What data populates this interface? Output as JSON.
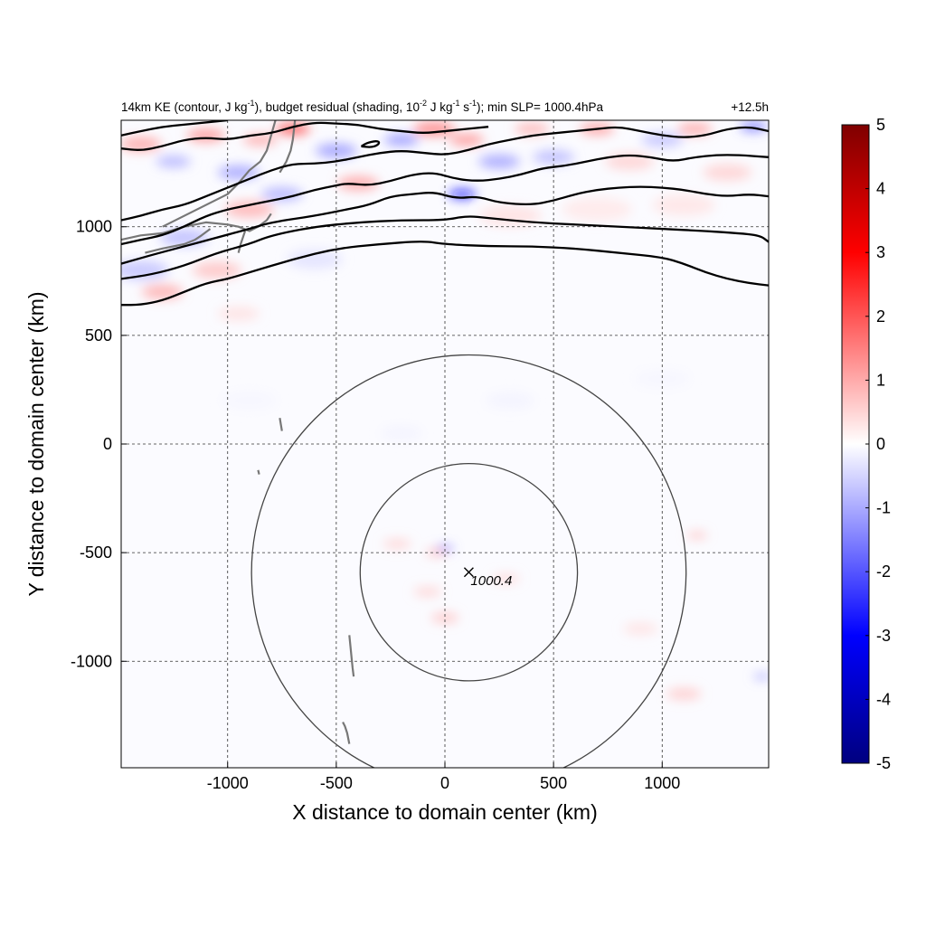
{
  "chart_data": {
    "type": "heatmap",
    "title": {
      "p1": "14km KE (contour, J kg",
      "p1_sup": "-1",
      "p2": "), budget residual (shading, 10",
      "p2_sup": "-2",
      "p3": " J kg",
      "p3_sup": "-1",
      "p4": " s",
      "p4_sup": "-1",
      "p5": "); min SLP= 1000.4hPa"
    },
    "time_label": "+12.5h",
    "xlabel": "X distance to domain center (km)",
    "ylabel": "Y distance to domain center (km)",
    "xlim": [
      -1490,
      1490
    ],
    "ylim": [
      -1490,
      1490
    ],
    "xticks": [
      "-1000",
      "-500",
      "0",
      "500",
      "1000"
    ],
    "xtick_values": [
      -1000,
      -500,
      0,
      500,
      1000
    ],
    "yticks": [
      "1000",
      "500",
      "0",
      "-500",
      "-1000"
    ],
    "ytick_values": [
      1000,
      500,
      0,
      -500,
      -1000
    ],
    "grid": "dashed",
    "colorbar": {
      "range": [
        -5,
        5
      ],
      "ticks": [
        "5",
        "4",
        "3",
        "2",
        "1",
        "0",
        "-1",
        "-2",
        "-3",
        "-4",
        "-5"
      ],
      "tick_values": [
        5,
        4,
        3,
        2,
        1,
        0,
        -1,
        -2,
        -3,
        -4,
        -5
      ],
      "colors": [
        "#00007f",
        "#0000ff",
        "#ffffff",
        "#ff0000",
        "#7f0000"
      ]
    },
    "storm_center": {
      "x": 110,
      "y": -590,
      "marker": "x",
      "label": "1000.4"
    },
    "range_circles_km": [
      500,
      1000
    ],
    "ke_contours": [
      {
        "points": [
          [
            -1490,
            640
          ],
          [
            -1400,
            640
          ],
          [
            -1300,
            660
          ],
          [
            -1200,
            700
          ],
          [
            -1100,
            740
          ],
          [
            -1000,
            760
          ],
          [
            -900,
            790
          ],
          [
            -700,
            850
          ],
          [
            -500,
            900
          ],
          [
            -300,
            920
          ],
          [
            -100,
            935
          ],
          [
            0,
            920
          ],
          [
            200,
            910
          ],
          [
            400,
            910
          ],
          [
            600,
            900
          ],
          [
            800,
            880
          ],
          [
            1000,
            860
          ],
          [
            1100,
            830
          ],
          [
            1200,
            790
          ],
          [
            1300,
            760
          ],
          [
            1400,
            740
          ],
          [
            1490,
            730
          ]
        ]
      },
      {
        "points": [
          [
            -1490,
            760
          ],
          [
            -1350,
            780
          ],
          [
            -1200,
            820
          ],
          [
            -1050,
            880
          ],
          [
            -900,
            920
          ],
          [
            -800,
            960
          ],
          [
            -600,
            1000
          ],
          [
            -400,
            1020
          ],
          [
            -200,
            1030
          ],
          [
            0,
            1030
          ],
          [
            100,
            1050
          ],
          [
            200,
            1040
          ],
          [
            400,
            1020
          ],
          [
            600,
            1010
          ],
          [
            800,
            1000
          ],
          [
            1000,
            990
          ],
          [
            1200,
            980
          ],
          [
            1350,
            970
          ],
          [
            1450,
            960
          ],
          [
            1490,
            930
          ]
        ]
      },
      {
        "points": [
          [
            -1490,
            830
          ],
          [
            -1350,
            870
          ],
          [
            -1200,
            910
          ],
          [
            -1050,
            950
          ],
          [
            -900,
            990
          ],
          [
            -800,
            1020
          ],
          [
            -600,
            1050
          ],
          [
            -450,
            1080
          ],
          [
            -350,
            1100
          ],
          [
            -250,
            1140
          ],
          [
            -150,
            1150
          ],
          [
            -50,
            1160
          ],
          [
            50,
            1130
          ],
          [
            150,
            1140
          ],
          [
            250,
            1110
          ],
          [
            400,
            1100
          ],
          [
            500,
            1120
          ],
          [
            600,
            1150
          ],
          [
            700,
            1170
          ],
          [
            800,
            1180
          ],
          [
            900,
            1185
          ],
          [
            1000,
            1180
          ],
          [
            1100,
            1170
          ],
          [
            1200,
            1150
          ],
          [
            1300,
            1140
          ],
          [
            1400,
            1150
          ],
          [
            1490,
            1140
          ]
        ]
      },
      {
        "points": [
          [
            -1490,
            920
          ],
          [
            -1400,
            940
          ],
          [
            -1300,
            960
          ],
          [
            -1200,
            1000
          ],
          [
            -1100,
            1050
          ],
          [
            -1000,
            1080
          ],
          [
            -900,
            1100
          ],
          [
            -800,
            1120
          ],
          [
            -700,
            1140
          ],
          [
            -600,
            1170
          ],
          [
            -500,
            1190
          ],
          [
            -450,
            1200
          ],
          [
            -350,
            1190
          ],
          [
            -250,
            1210
          ],
          [
            -150,
            1240
          ],
          [
            -50,
            1250
          ],
          [
            50,
            1220
          ],
          [
            150,
            1210
          ],
          [
            250,
            1220
          ],
          [
            350,
            1240
          ],
          [
            450,
            1270
          ],
          [
            550,
            1280
          ],
          [
            650,
            1300
          ],
          [
            750,
            1320
          ],
          [
            850,
            1330
          ],
          [
            950,
            1320
          ],
          [
            1050,
            1300
          ],
          [
            1150,
            1320
          ],
          [
            1250,
            1330
          ],
          [
            1350,
            1330
          ],
          [
            1490,
            1320
          ]
        ]
      },
      {
        "points": [
          [
            -1490,
            1030
          ],
          [
            -1400,
            1050
          ],
          [
            -1300,
            1080
          ],
          [
            -1200,
            1100
          ],
          [
            -1100,
            1140
          ],
          [
            -1000,
            1180
          ],
          [
            -900,
            1220
          ],
          [
            -800,
            1260
          ],
          [
            -700,
            1290
          ],
          [
            -600,
            1290
          ],
          [
            -500,
            1300
          ],
          [
            -400,
            1320
          ],
          [
            -300,
            1340
          ],
          [
            -200,
            1350
          ],
          [
            -100,
            1340
          ],
          [
            0,
            1330
          ],
          [
            100,
            1350
          ],
          [
            200,
            1380
          ],
          [
            300,
            1400
          ],
          [
            400,
            1420
          ],
          [
            500,
            1430
          ],
          [
            600,
            1440
          ],
          [
            700,
            1450
          ],
          [
            800,
            1460
          ],
          [
            900,
            1440
          ],
          [
            1000,
            1420
          ],
          [
            1100,
            1410
          ],
          [
            1200,
            1420
          ],
          [
            1300,
            1450
          ],
          [
            1400,
            1460
          ],
          [
            1490,
            1440
          ]
        ]
      },
      {
        "points": [
          [
            -1490,
            1360
          ],
          [
            -1400,
            1350
          ],
          [
            -1300,
            1370
          ],
          [
            -1200,
            1400
          ],
          [
            -1100,
            1410
          ],
          [
            -1000,
            1400
          ],
          [
            -900,
            1420
          ],
          [
            -800,
            1430
          ],
          [
            -700,
            1460
          ],
          [
            -600,
            1480
          ],
          [
            -500,
            1475
          ],
          [
            -400,
            1470
          ],
          [
            -300,
            1450
          ],
          [
            -200,
            1440
          ],
          [
            -100,
            1430
          ],
          [
            0,
            1440
          ],
          [
            100,
            1450
          ],
          [
            200,
            1460
          ]
        ]
      },
      {
        "points": [
          [
            -1490,
            1420
          ],
          [
            -1400,
            1440
          ],
          [
            -1300,
            1460
          ],
          [
            -1200,
            1470
          ],
          [
            -1100,
            1480
          ],
          [
            -1000,
            1490
          ]
        ]
      },
      {
        "points": [
          [
            -385,
            1370
          ],
          [
            -360,
            1385
          ],
          [
            -320,
            1395
          ],
          [
            -300,
            1390
          ],
          [
            -310,
            1375
          ],
          [
            -340,
            1365
          ],
          [
            -385,
            1370
          ]
        ]
      }
    ],
    "residual_blobs": [
      {
        "x": -1400,
        "y": 1380,
        "r": 60,
        "v": 1.2
      },
      {
        "x": -1250,
        "y": 1300,
        "r": 50,
        "v": -1.0
      },
      {
        "x": -1100,
        "y": 1420,
        "r": 55,
        "v": 1.4
      },
      {
        "x": -950,
        "y": 1250,
        "r": 60,
        "v": -1.2
      },
      {
        "x": -850,
        "y": 1400,
        "r": 50,
        "v": 1.1
      },
      {
        "x": -900,
        "y": 1080,
        "r": 70,
        "v": 1.0
      },
      {
        "x": -1200,
        "y": 950,
        "r": 70,
        "v": -0.9
      },
      {
        "x": -1400,
        "y": 800,
        "r": 80,
        "v": -0.8
      },
      {
        "x": -1300,
        "y": 700,
        "r": 60,
        "v": 1.1
      },
      {
        "x": -1050,
        "y": 800,
        "r": 70,
        "v": 0.8
      },
      {
        "x": -750,
        "y": 1150,
        "r": 60,
        "v": -1.0
      },
      {
        "x": -700,
        "y": 1450,
        "r": 50,
        "v": 2.2
      },
      {
        "x": -500,
        "y": 1350,
        "r": 60,
        "v": -1.3
      },
      {
        "x": -400,
        "y": 1200,
        "r": 60,
        "v": 1.2
      },
      {
        "x": -200,
        "y": 1400,
        "r": 50,
        "v": -1.4
      },
      {
        "x": -50,
        "y": 1450,
        "r": 60,
        "v": 1.6
      },
      {
        "x": 80,
        "y": 1150,
        "r": 40,
        "v": -2.8
      },
      {
        "x": 100,
        "y": 1400,
        "r": 50,
        "v": 1.4
      },
      {
        "x": 250,
        "y": 1300,
        "r": 60,
        "v": -1.2
      },
      {
        "x": 400,
        "y": 1450,
        "r": 50,
        "v": 1.0
      },
      {
        "x": 500,
        "y": 1320,
        "r": 60,
        "v": -0.9
      },
      {
        "x": 700,
        "y": 1450,
        "r": 50,
        "v": 1.3
      },
      {
        "x": 850,
        "y": 1300,
        "r": 70,
        "v": 0.6
      },
      {
        "x": 1000,
        "y": 1400,
        "r": 60,
        "v": -0.8
      },
      {
        "x": 1150,
        "y": 1450,
        "r": 50,
        "v": 1.2
      },
      {
        "x": 1300,
        "y": 1250,
        "r": 70,
        "v": 0.6
      },
      {
        "x": 1420,
        "y": 1460,
        "r": 40,
        "v": -1.8
      },
      {
        "x": 300,
        "y": 1050,
        "r": 90,
        "v": 0.4
      },
      {
        "x": 700,
        "y": 1080,
        "r": 100,
        "v": 0.3
      },
      {
        "x": 1100,
        "y": 1100,
        "r": 90,
        "v": 0.35
      },
      {
        "x": -600,
        "y": 850,
        "r": 80,
        "v": -0.4
      },
      {
        "x": -950,
        "y": 600,
        "r": 60,
        "v": 0.4
      },
      {
        "x": 0,
        "y": -480,
        "r": 25,
        "v": -1.6
      },
      {
        "x": -40,
        "y": -500,
        "r": 30,
        "v": 0.9
      },
      {
        "x": -220,
        "y": -460,
        "r": 40,
        "v": 0.6
      },
      {
        "x": -80,
        "y": -680,
        "r": 40,
        "v": 0.6
      },
      {
        "x": 0,
        "y": -800,
        "r": 40,
        "v": 0.8
      },
      {
        "x": 280,
        "y": -620,
        "r": 40,
        "v": 0.5
      },
      {
        "x": 1160,
        "y": -420,
        "r": 30,
        "v": 0.8
      },
      {
        "x": 1100,
        "y": -1150,
        "r": 50,
        "v": 0.7
      },
      {
        "x": 900,
        "y": -850,
        "r": 50,
        "v": 0.4
      },
      {
        "x": 1460,
        "y": -1070,
        "r": 25,
        "v": -1.2
      },
      {
        "x": -200,
        "y": 50,
        "r": 60,
        "v": -0.15
      },
      {
        "x": 300,
        "y": 200,
        "r": 70,
        "v": -0.15
      },
      {
        "x": -900,
        "y": 200,
        "r": 80,
        "v": -0.12
      },
      {
        "x": 1000,
        "y": 300,
        "r": 80,
        "v": -0.12
      }
    ],
    "coastline": [
      {
        "points": [
          [
            -1300,
            1000
          ],
          [
            -1200,
            1050
          ],
          [
            -1100,
            1100
          ],
          [
            -1000,
            1150
          ],
          [
            -950,
            1200
          ],
          [
            -900,
            1260
          ],
          [
            -850,
            1300
          ],
          [
            -820,
            1350
          ],
          [
            -800,
            1420
          ],
          [
            -780,
            1490
          ]
        ]
      },
      {
        "points": [
          [
            -1490,
            940
          ],
          [
            -1400,
            960
          ],
          [
            -1300,
            970
          ],
          [
            -1200,
            1000
          ],
          [
            -1100,
            1020
          ],
          [
            -1000,
            1010
          ],
          [
            -950,
            1000
          ],
          [
            -900,
            980
          ],
          [
            -860,
            1000
          ],
          [
            -820,
            1030
          ],
          [
            -800,
            1060
          ]
        ]
      },
      {
        "points": [
          [
            -1380,
            880
          ],
          [
            -1300,
            900
          ],
          [
            -1200,
            920
          ],
          [
            -1150,
            940
          ],
          [
            -1120,
            960
          ],
          [
            -1080,
            990
          ]
        ]
      },
      {
        "points": [
          [
            -950,
            880
          ],
          [
            -940,
            920
          ],
          [
            -930,
            950
          ],
          [
            -920,
            980
          ]
        ]
      },
      {
        "points": [
          [
            -760,
            1250
          ],
          [
            -730,
            1300
          ],
          [
            -710,
            1350
          ],
          [
            -700,
            1400
          ],
          [
            -690,
            1490
          ]
        ]
      },
      {
        "points": [
          [
            -760,
            120
          ],
          [
            -755,
            90
          ],
          [
            -750,
            60
          ]
        ]
      },
      {
        "points": [
          [
            -860,
            -120
          ],
          [
            -855,
            -140
          ]
        ]
      },
      {
        "points": [
          [
            -440,
            -880
          ],
          [
            -435,
            -930
          ],
          [
            -430,
            -980
          ],
          [
            -425,
            -1030
          ],
          [
            -420,
            -1070
          ]
        ]
      },
      {
        "points": [
          [
            -470,
            -1280
          ],
          [
            -460,
            -1300
          ],
          [
            -450,
            -1330
          ],
          [
            -440,
            -1380
          ]
        ]
      }
    ]
  }
}
